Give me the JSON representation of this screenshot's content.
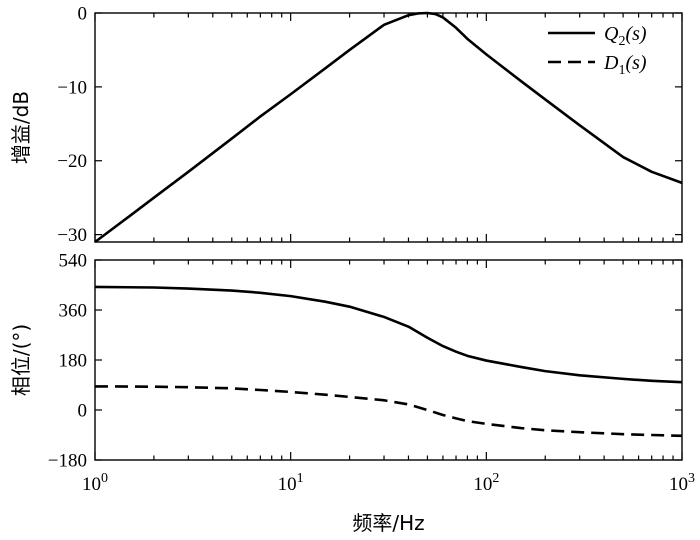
{
  "chart_data": [
    {
      "type": "line",
      "panel": "top",
      "ylabel": "增益/dB",
      "xscale": "log",
      "xlim": [
        1,
        1000
      ],
      "ylim": [
        -31,
        0
      ],
      "yticks": [
        "0",
        "−10",
        "−20",
        "−30"
      ],
      "ytick_values": [
        0,
        -10,
        -20,
        -30
      ],
      "legend_position": "top-right",
      "series": [
        {
          "name": "Q2(s)",
          "name_parts": {
            "base": "Q",
            "sub": "2",
            "tail": "(s)"
          },
          "style": "solid",
          "x": [
            1,
            1.5,
            2,
            3,
            5,
            7,
            10,
            15,
            20,
            30,
            40,
            45,
            50,
            55,
            60,
            70,
            80,
            100,
            150,
            200,
            300,
            500,
            700,
            1000
          ],
          "y": [
            -31,
            -27.5,
            -25,
            -21.5,
            -17,
            -14,
            -11,
            -7.5,
            -5,
            -1.6,
            -0.3,
            -0.05,
            0,
            -0.15,
            -0.6,
            -2,
            -3.5,
            -5.6,
            -9.2,
            -11.7,
            -15.2,
            -19.5,
            -21.5,
            -23
          ]
        }
      ]
    },
    {
      "type": "line",
      "panel": "bottom",
      "ylabel": "相位/(°)",
      "xlabel": "频率/Hz",
      "xscale": "log",
      "xlim": [
        1,
        1000
      ],
      "ylim": [
        -180,
        540
      ],
      "yticks": [
        "540",
        "360",
        "180",
        "0",
        "−180"
      ],
      "ytick_values": [
        540,
        360,
        180,
        0,
        -180
      ],
      "xticks": [
        {
          "value": 1,
          "base": "10",
          "exp": "0"
        },
        {
          "value": 10,
          "base": "10",
          "exp": "1"
        },
        {
          "value": 100,
          "base": "10",
          "exp": "2"
        },
        {
          "value": 1000,
          "base": "10",
          "exp": "3"
        }
      ],
      "series": [
        {
          "name": "Q2(s)",
          "style": "solid",
          "x": [
            1,
            2,
            3,
            5,
            7,
            10,
            15,
            20,
            30,
            40,
            50,
            60,
            70,
            80,
            100,
            150,
            200,
            300,
            500,
            700,
            1000
          ],
          "y": [
            443,
            441,
            437,
            430,
            422,
            410,
            390,
            372,
            335,
            300,
            260,
            230,
            210,
            195,
            178,
            155,
            140,
            125,
            112,
            105,
            100
          ]
        },
        {
          "name": "D1(s)",
          "name_parts": {
            "base": "D",
            "sub": "1",
            "tail": "(s)"
          },
          "style": "dashed",
          "x": [
            1,
            2,
            3,
            5,
            7,
            10,
            15,
            20,
            30,
            40,
            50,
            60,
            70,
            80,
            100,
            150,
            200,
            300,
            500,
            700,
            1000
          ],
          "y": [
            85,
            84,
            82,
            78,
            72,
            65,
            55,
            47,
            35,
            20,
            0,
            -18,
            -30,
            -40,
            -50,
            -65,
            -73,
            -80,
            -87,
            -90,
            -93
          ]
        }
      ]
    }
  ]
}
